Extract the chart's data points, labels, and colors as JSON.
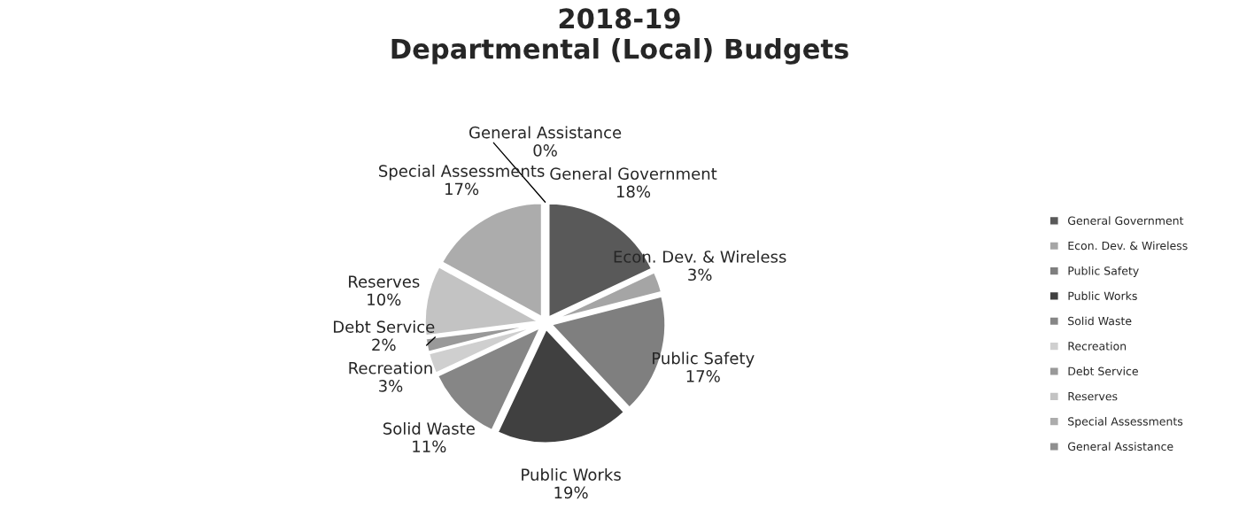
{
  "chart_data": {
    "type": "pie",
    "title": "2018-19\nDepartmental (Local) Budgets",
    "categories": [
      "General Government",
      "Econ. Dev. & Wireless",
      "Public Safety",
      "Public Works",
      "Solid Waste",
      "Recreation",
      "Debt Service",
      "Reserves",
      "Special Assessments",
      "General Assistance"
    ],
    "values": [
      18,
      3,
      17,
      19,
      11,
      3,
      2,
      10,
      17,
      0
    ],
    "value_labels": [
      "18%",
      "3%",
      "17%",
      "19%",
      "11%",
      "3%",
      "2%",
      "10%",
      "17%",
      "0%"
    ],
    "colors": [
      "#595959",
      "#a5a5a5",
      "#7f7f7f",
      "#404040",
      "#868686",
      "#cfcfcf",
      "#999999",
      "#c3c3c3",
      "#acacac",
      "#8f8f8f"
    ],
    "legend": "right"
  }
}
